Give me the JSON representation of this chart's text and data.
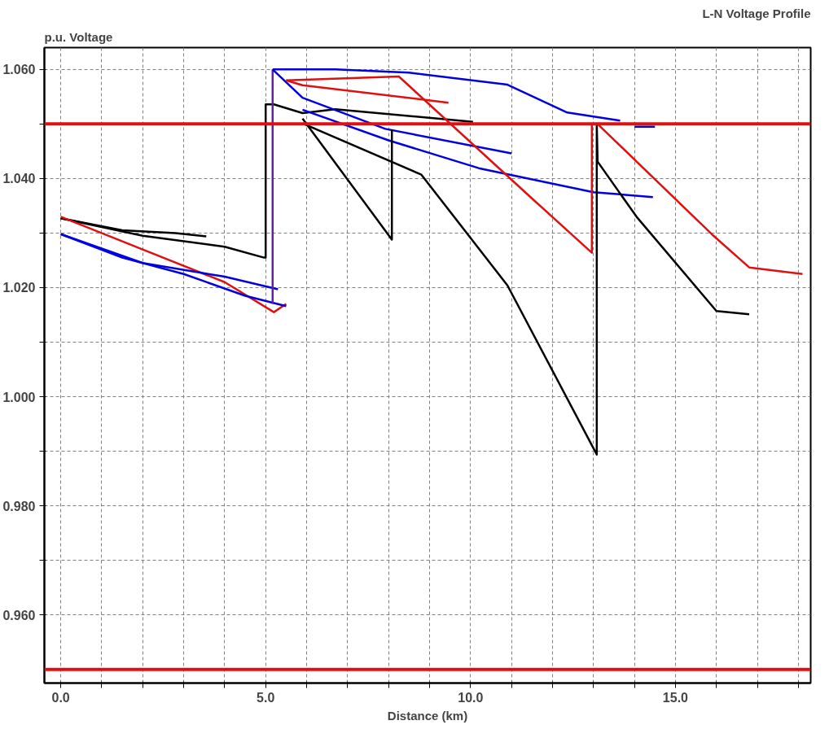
{
  "chart_data": {
    "type": "line",
    "title": "L-N Voltage Profile",
    "ylabel": "p.u. Voltage",
    "xlabel": "Distance (km)",
    "xlim": [
      -0.4,
      18.3
    ],
    "ylim": [
      0.9475,
      1.064
    ],
    "xticks": [
      {
        "value": 0,
        "label": "0.0"
      },
      {
        "value": 1,
        "label": null
      },
      {
        "value": 2,
        "label": null
      },
      {
        "value": 3,
        "label": null
      },
      {
        "value": 4,
        "label": null
      },
      {
        "value": 5,
        "label": "5.0"
      },
      {
        "value": 6,
        "label": null
      },
      {
        "value": 7,
        "label": null
      },
      {
        "value": 8,
        "label": null
      },
      {
        "value": 9,
        "label": null
      },
      {
        "value": 10,
        "label": "10.0"
      },
      {
        "value": 11,
        "label": null
      },
      {
        "value": 12,
        "label": null
      },
      {
        "value": 13,
        "label": null
      },
      {
        "value": 14,
        "label": null
      },
      {
        "value": 15,
        "label": "15.0"
      },
      {
        "value": 16,
        "label": null
      },
      {
        "value": 17,
        "label": null
      },
      {
        "value": 18,
        "label": null
      }
    ],
    "yticks": [
      {
        "value": 0.96,
        "label": "0.960"
      },
      {
        "value": 0.97,
        "label": null
      },
      {
        "value": 0.98,
        "label": "0.980"
      },
      {
        "value": 0.99,
        "label": null
      },
      {
        "value": 1.0,
        "label": "1.000"
      },
      {
        "value": 1.01,
        "label": null
      },
      {
        "value": 1.02,
        "label": "1.020"
      },
      {
        "value": 1.03,
        "label": null
      },
      {
        "value": 1.04,
        "label": "1.040"
      },
      {
        "value": 1.05,
        "label": null
      },
      {
        "value": 1.06,
        "label": "1.060"
      }
    ],
    "grid": true,
    "line_style": "solid",
    "marker": "none",
    "ref_lines": [
      {
        "axis": "y",
        "value": 1.05,
        "label": null,
        "color": "#e01010"
      },
      {
        "axis": "y",
        "value": 0.95,
        "label": null,
        "color": "#e01010"
      }
    ],
    "series": [
      {
        "color": "#000000",
        "x": [
          0,
          1.5,
          2.8,
          3.55
        ],
        "values": [
          1.0327,
          1.0305,
          1.03,
          1.0294
        ]
      },
      {
        "color": "#000000",
        "x": [
          0,
          2.0,
          4.0,
          4.96,
          5.0,
          5.0,
          5.2,
          5.9,
          6.7,
          10.06
        ],
        "values": [
          1.0327,
          1.0295,
          1.0275,
          1.0255,
          1.0255,
          1.0536,
          1.0536,
          1.052,
          1.0527,
          1.0504
        ]
      },
      {
        "color": "#e01010",
        "x": [
          0,
          2.0,
          4.0,
          5.2,
          5.5
        ],
        "values": [
          1.033,
          1.027,
          1.021,
          1.0155,
          1.017
        ]
      },
      {
        "color": "#0000e0",
        "x": [
          0,
          2.0,
          4.0,
          5.3
        ],
        "values": [
          1.0298,
          1.0245,
          1.022,
          1.0197
        ]
      },
      {
        "color": "#0000e0",
        "x": [
          0,
          1.5,
          3.0,
          4.5,
          5.5
        ],
        "values": [
          1.0298,
          1.0255,
          1.0225,
          1.0185,
          1.0166
        ]
      },
      {
        "color": "#6020a0",
        "x": [
          5.17,
          5.17
        ],
        "values": [
          1.017,
          1.06
        ]
      },
      {
        "color": "#0000e0",
        "x": [
          5.17,
          6.7,
          8.5,
          10.9,
          12.36,
          13.65
        ],
        "values": [
          1.06,
          1.06,
          1.0594,
          1.0572,
          1.0521,
          1.0506
        ]
      },
      {
        "color": "#0000e0",
        "x": [
          14.0,
          14.5
        ],
        "values": [
          1.0495,
          1.0495
        ]
      },
      {
        "color": "#0000e0",
        "x": [
          5.17,
          5.9,
          7.92,
          11.0
        ],
        "values": [
          1.06,
          1.0548,
          1.0491,
          1.0446
        ]
      },
      {
        "color": "#0000e0",
        "x": [
          5.9,
          8.0,
          10.2,
          13.0,
          14.45
        ],
        "values": [
          1.0526,
          1.047,
          1.0419,
          1.0375,
          1.0366
        ]
      },
      {
        "color": "#e01010",
        "x": [
          5.5,
          5.9,
          9.46
        ],
        "values": [
          1.058,
          1.0571,
          1.0539
        ]
      },
      {
        "color": "#e01010",
        "x": [
          5.5,
          8.25,
          11.55,
          12.96,
          12.96,
          13.1,
          15.9,
          16.8,
          18.1
        ],
        "values": [
          1.058,
          1.0587,
          1.036,
          1.0264,
          1.05,
          1.05,
          1.0297,
          1.0237,
          1.0225
        ]
      },
      {
        "color": "#000000",
        "x": [
          5.9,
          8.8,
          10.9,
          13.08,
          13.08,
          13.1,
          14.05,
          16.0,
          16.8
        ],
        "values": [
          1.0501,
          1.0407,
          1.0204,
          0.9894,
          1.05,
          1.0431,
          1.033,
          1.0157,
          1.0151
        ]
      },
      {
        "color": "#000000",
        "x": [
          5.9,
          8.08,
          8.08
        ],
        "values": [
          1.051,
          1.0288,
          1.049
        ]
      }
    ]
  }
}
